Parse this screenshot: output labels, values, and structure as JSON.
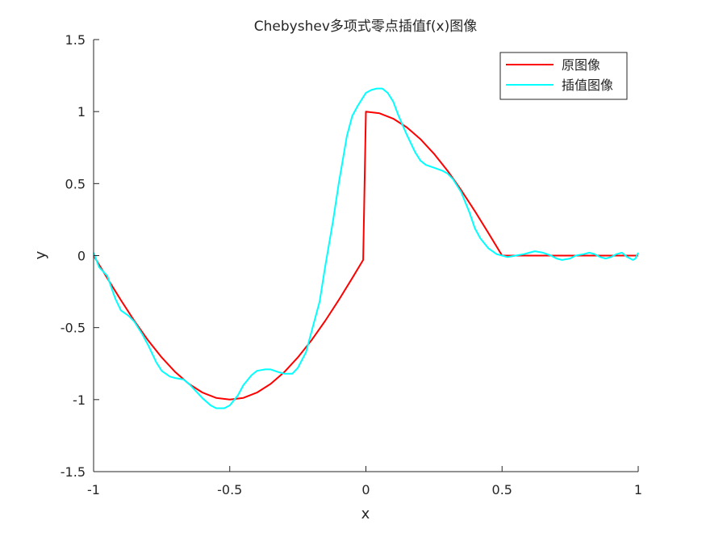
{
  "chart_data": {
    "type": "line",
    "title": "Chebyshev多项式零点插值f(x)图像",
    "xlabel": "x",
    "ylabel": "y",
    "xlim": [
      -1,
      1
    ],
    "ylim": [
      -1.5,
      1.5
    ],
    "x_ticks": [
      -1,
      -0.5,
      0,
      0.5,
      1
    ],
    "y_ticks": [
      -1.5,
      -1,
      -0.5,
      0,
      0.5,
      1,
      1.5
    ],
    "x_tick_labels": [
      "-1",
      "-0.5",
      "0",
      "0.5",
      "1"
    ],
    "y_tick_labels": [
      "-1.5",
      "-1",
      "-0.5",
      "0",
      "0.5",
      "1",
      "1.5"
    ],
    "grid": false,
    "legend_position": "top-right",
    "series": [
      {
        "name": "原图像",
        "color": "#ff0000",
        "x": [
          -1,
          -0.95,
          -0.9,
          -0.85,
          -0.8,
          -0.75,
          -0.7,
          -0.65,
          -0.6,
          -0.55,
          -0.5,
          -0.45,
          -0.4,
          -0.35,
          -0.3,
          -0.25,
          -0.2,
          -0.15,
          -0.1,
          -0.05,
          -0.01,
          0,
          0.05,
          0.1,
          0.15,
          0.2,
          0.25,
          0.3,
          0.35,
          0.4,
          0.45,
          0.5,
          0.55,
          0.6,
          0.65,
          0.7,
          0.75,
          0.8,
          0.85,
          0.9,
          0.95,
          1
        ],
        "y": [
          0,
          -0.156,
          -0.309,
          -0.454,
          -0.588,
          -0.707,
          -0.809,
          -0.891,
          -0.951,
          -0.988,
          -1,
          -0.988,
          -0.951,
          -0.891,
          -0.809,
          -0.707,
          -0.588,
          -0.454,
          -0.309,
          -0.156,
          -0.03,
          1,
          0.988,
          0.951,
          0.891,
          0.809,
          0.707,
          0.588,
          0.454,
          0.309,
          0.156,
          0,
          0,
          0,
          0,
          0,
          0,
          0,
          0,
          0,
          0,
          0
        ]
      },
      {
        "name": "插值图像",
        "color": "#00ffff",
        "x": [
          -1,
          -0.98,
          -0.95,
          -0.92,
          -0.9,
          -0.87,
          -0.85,
          -0.82,
          -0.8,
          -0.77,
          -0.75,
          -0.72,
          -0.7,
          -0.67,
          -0.65,
          -0.62,
          -0.6,
          -0.57,
          -0.55,
          -0.52,
          -0.5,
          -0.47,
          -0.45,
          -0.42,
          -0.4,
          -0.37,
          -0.35,
          -0.32,
          -0.3,
          -0.27,
          -0.25,
          -0.22,
          -0.2,
          -0.17,
          -0.15,
          -0.12,
          -0.1,
          -0.07,
          -0.05,
          -0.03,
          -0.01,
          0,
          0.02,
          0.04,
          0.06,
          0.08,
          0.1,
          0.12,
          0.15,
          0.18,
          0.2,
          0.22,
          0.25,
          0.28,
          0.3,
          0.32,
          0.35,
          0.38,
          0.4,
          0.42,
          0.45,
          0.48,
          0.5,
          0.52,
          0.55,
          0.58,
          0.6,
          0.62,
          0.65,
          0.68,
          0.7,
          0.72,
          0.75,
          0.77,
          0.8,
          0.82,
          0.84,
          0.86,
          0.88,
          0.9,
          0.92,
          0.94,
          0.96,
          0.98,
          0.99,
          1
        ],
        "y": [
          0.02,
          -0.08,
          -0.14,
          -0.3,
          -0.38,
          -0.42,
          -0.46,
          -0.55,
          -0.62,
          -0.74,
          -0.8,
          -0.84,
          -0.85,
          -0.86,
          -0.89,
          -0.95,
          -0.99,
          -1.04,
          -1.06,
          -1.06,
          -1.04,
          -0.97,
          -0.9,
          -0.83,
          -0.8,
          -0.79,
          -0.79,
          -0.81,
          -0.82,
          -0.82,
          -0.78,
          -0.67,
          -0.53,
          -0.32,
          -0.08,
          0.25,
          0.5,
          0.83,
          0.97,
          1.04,
          1.1,
          1.13,
          1.15,
          1.16,
          1.16,
          1.13,
          1.07,
          0.97,
          0.84,
          0.72,
          0.66,
          0.63,
          0.61,
          0.59,
          0.57,
          0.53,
          0.44,
          0.3,
          0.19,
          0.12,
          0.05,
          0.01,
          0,
          -0.01,
          0,
          0.01,
          0.02,
          0.03,
          0.02,
          0,
          -0.02,
          -0.03,
          -0.02,
          0,
          0.01,
          0.02,
          0.01,
          -0.01,
          -0.02,
          -0.01,
          0.01,
          0.02,
          -0.01,
          -0.03,
          -0.02,
          0.02
        ]
      }
    ]
  }
}
